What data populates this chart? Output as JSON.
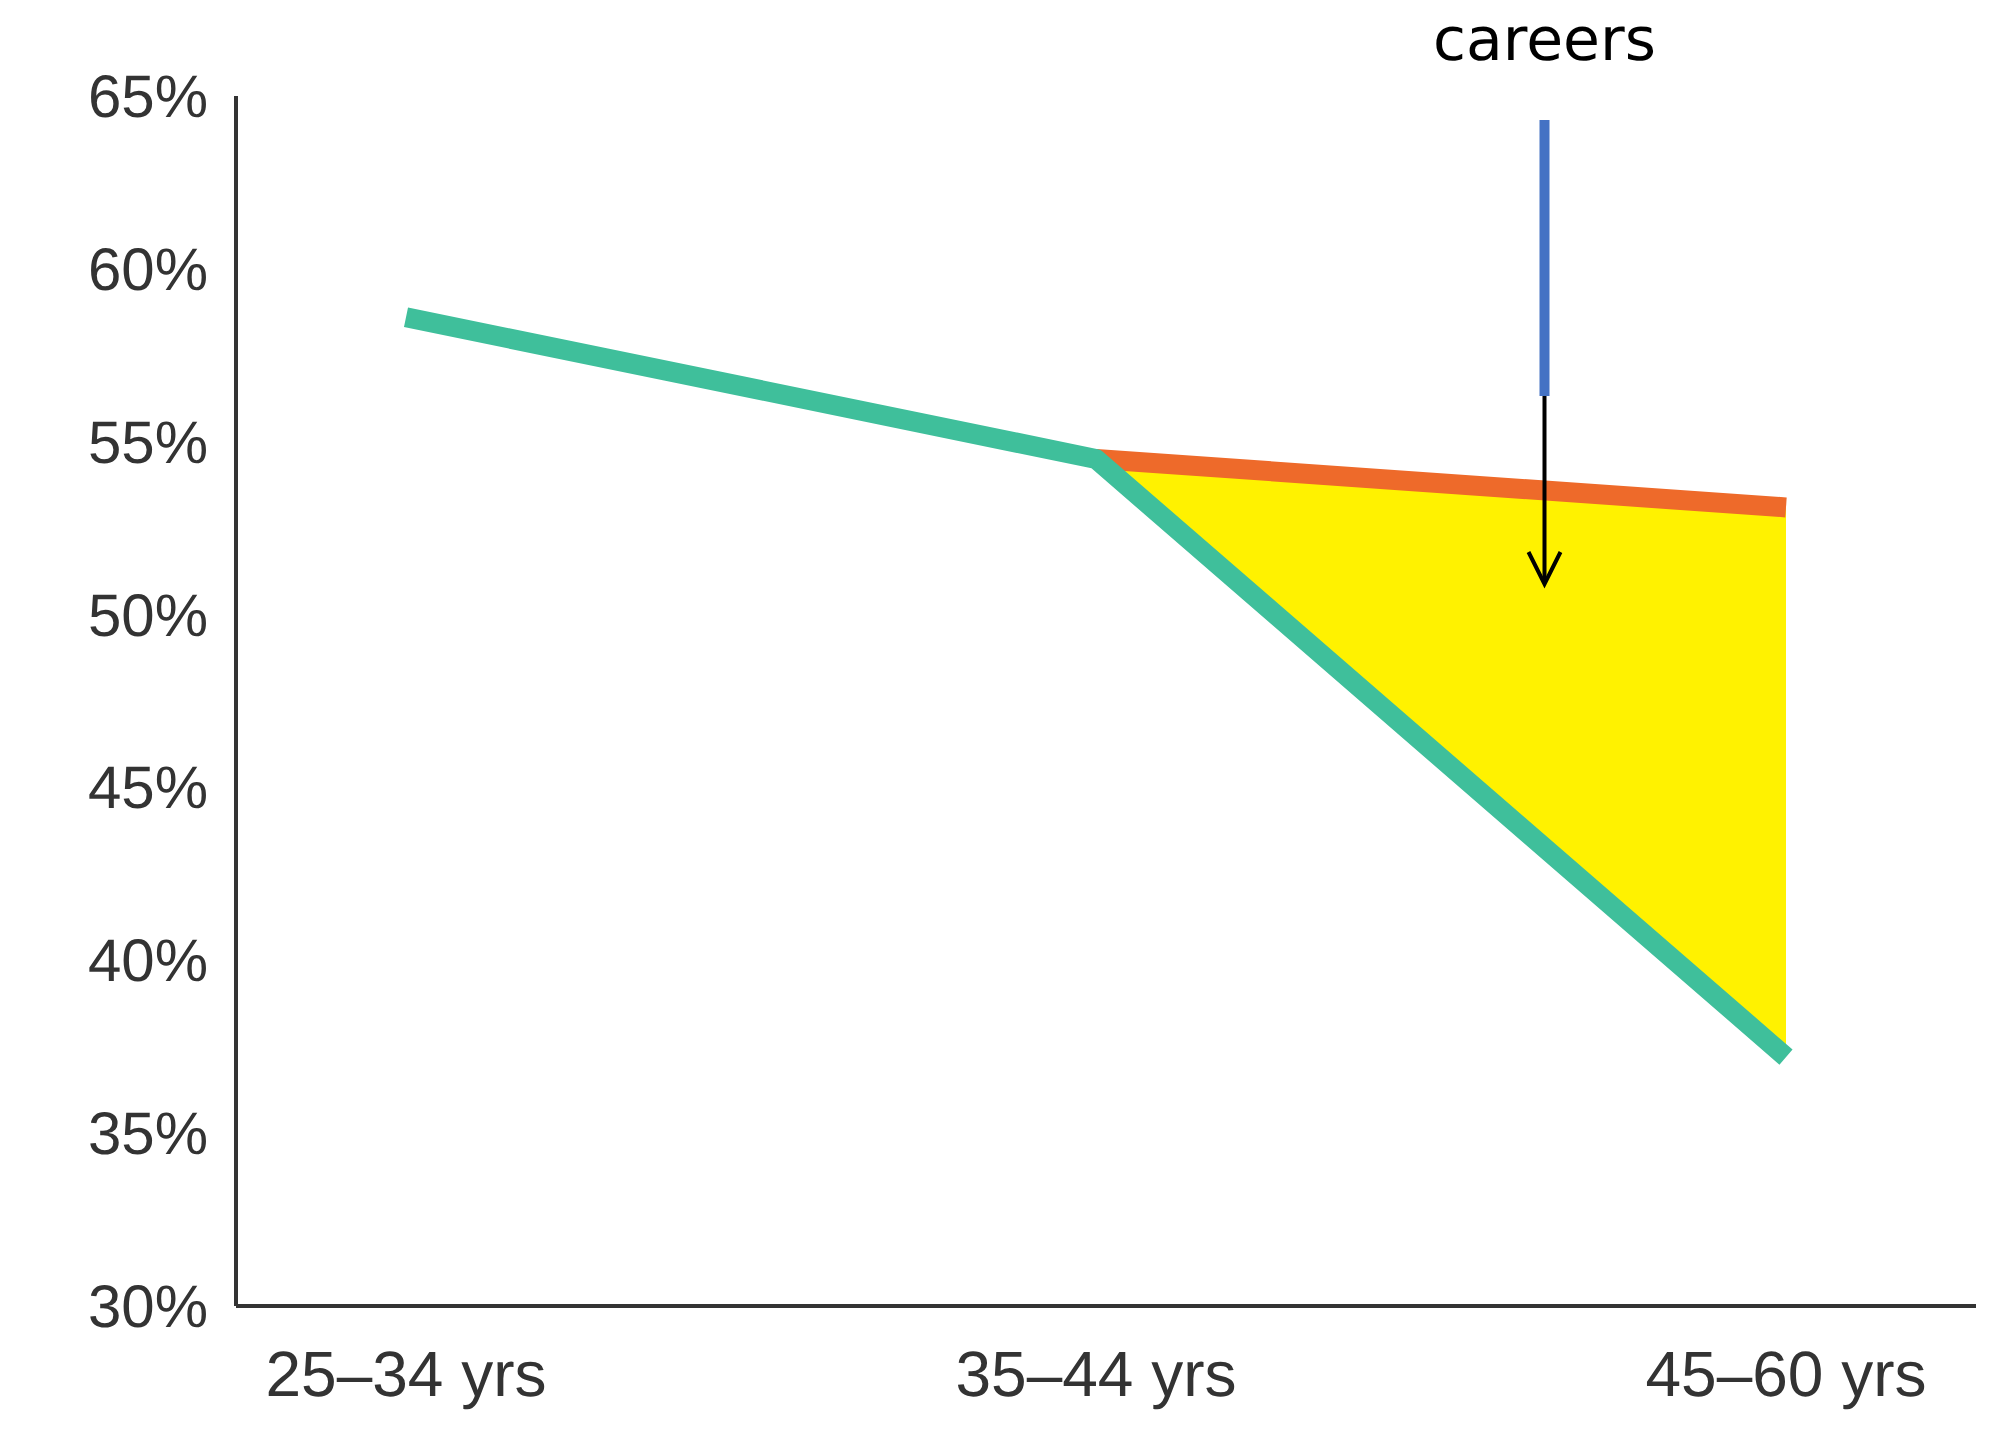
{
  "chart_data": {
    "type": "line",
    "categories": [
      "25–34 yrs",
      "35–44 yrs",
      "45–60 yrs"
    ],
    "series": [
      {
        "color": "#ee6a2a",
        "values": [
          null,
          54.5,
          53.1
        ],
        "lower": [
          null,
          54.5,
          37.2
        ],
        "upper": [
          null,
          54.5,
          53.1
        ]
      },
      {
        "color": "#3fbf9b",
        "values": [
          58.6,
          54.5,
          37.2
        ]
      }
    ],
    "ylim": [
      30,
      65
    ],
    "yticks": [
      {
        "value": 30,
        "label": "30%"
      },
      {
        "value": 35,
        "label": "35%"
      },
      {
        "value": 40,
        "label": "40%"
      },
      {
        "value": 45,
        "label": "45%"
      },
      {
        "value": 50,
        "label": "50%"
      },
      {
        "value": 55,
        "label": "55%"
      },
      {
        "value": 60,
        "label": "60%"
      },
      {
        "value": 65,
        "label": "65%"
      }
    ],
    "annotations": [
      "careers"
    ],
    "grid": false
  }
}
